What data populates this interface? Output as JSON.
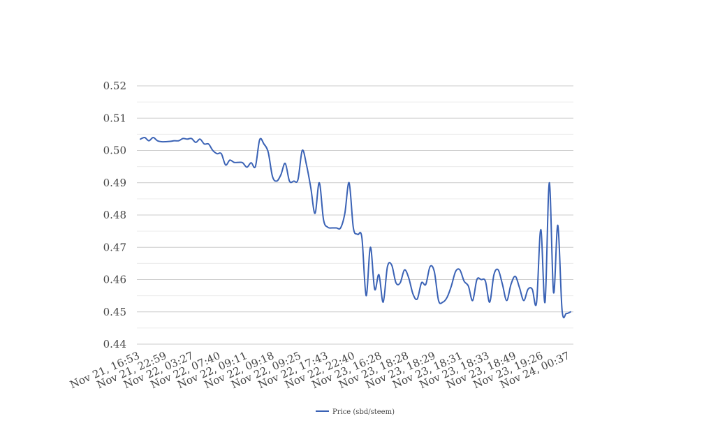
{
  "chart_data": {
    "type": "line",
    "title": "",
    "xlabel": "",
    "ylabel": "",
    "ylim": [
      0.44,
      0.52
    ],
    "yticks": [
      "0.44",
      "0.45",
      "0.46",
      "0.47",
      "0.48",
      "0.49",
      "0.50",
      "0.51",
      "0.52"
    ],
    "grid": true,
    "legend_position": "bottom",
    "line_color": "#3a62b5",
    "x_tick_labels": [
      "Nov 21, 16:53",
      "Nov 21, 22:59",
      "Nov 22, 03:27",
      "Nov 22, 07:40",
      "Nov 22, 09:11",
      "Nov 22, 09:18",
      "Nov 22, 09:25",
      "Nov 22, 17:43",
      "Nov 22, 22:40",
      "Nov 23, 16:28",
      "Nov 23, 18:28",
      "Nov 23, 18:29",
      "Nov 23, 18:31",
      "Nov 23, 18:33",
      "Nov 23, 18:49",
      "Nov 23, 19:26",
      "Nov 24, 00:37"
    ],
    "series": [
      {
        "name": "Price (sbd/steem)",
        "values": [
          0.5035,
          0.504,
          0.503,
          0.504,
          0.503,
          0.5027,
          0.5027,
          0.5028,
          0.503,
          0.503,
          0.5037,
          0.5035,
          0.5037,
          0.5025,
          0.5035,
          0.502,
          0.502,
          0.5,
          0.499,
          0.499,
          0.4955,
          0.497,
          0.4963,
          0.4963,
          0.4962,
          0.4948,
          0.4962,
          0.495,
          0.5033,
          0.502,
          0.4995,
          0.492,
          0.4905,
          0.4925,
          0.496,
          0.4905,
          0.4905,
          0.491,
          0.5,
          0.4955,
          0.4885,
          0.4805,
          0.49,
          0.4785,
          0.4762,
          0.476,
          0.476,
          0.476,
          0.4805,
          0.49,
          0.476,
          0.474,
          0.473,
          0.455,
          0.47,
          0.457,
          0.4615,
          0.453,
          0.464,
          0.4645,
          0.459,
          0.459,
          0.463,
          0.4605,
          0.4555,
          0.454,
          0.459,
          0.4585,
          0.464,
          0.4625,
          0.4535,
          0.453,
          0.4545,
          0.458,
          0.4625,
          0.463,
          0.4595,
          0.458,
          0.4535,
          0.46,
          0.46,
          0.4595,
          0.453,
          0.4615,
          0.463,
          0.4585,
          0.4535,
          0.4585,
          0.461,
          0.4575,
          0.4535,
          0.457,
          0.457,
          0.4528,
          0.4755,
          0.453,
          0.49,
          0.456,
          0.4768,
          0.4505,
          0.4495,
          0.45
        ]
      }
    ]
  }
}
